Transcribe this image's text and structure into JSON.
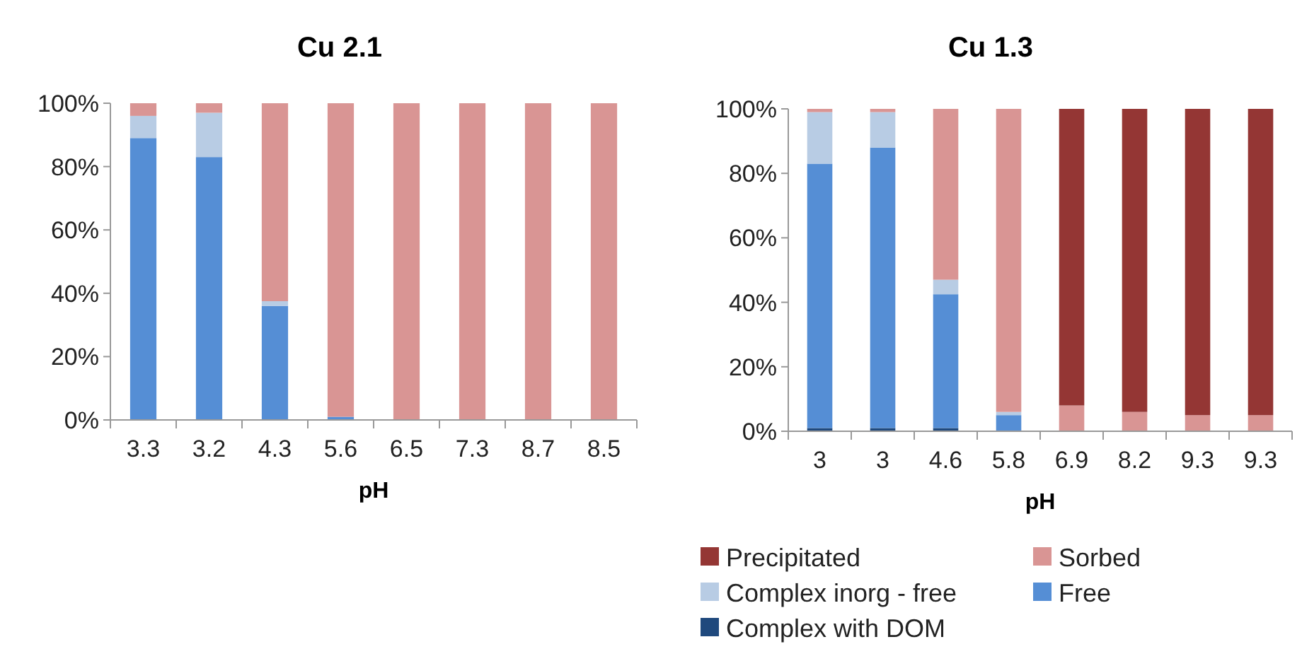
{
  "chart_data": [
    {
      "type": "bar",
      "title": "Cu 2.1",
      "xlabel": "pH",
      "stacked": true,
      "categories": [
        "3.3",
        "3.2",
        "4.3",
        "5.6",
        "6.5",
        "7.3",
        "8.7",
        "8.5"
      ],
      "ylim": [
        0,
        100
      ],
      "yticks": [
        {
          "value": 0,
          "label": "0%"
        },
        {
          "value": 20,
          "label": "20%"
        },
        {
          "value": 40,
          "label": "40%"
        },
        {
          "value": 60,
          "label": "60%"
        },
        {
          "value": 80,
          "label": "80%"
        },
        {
          "value": 100,
          "label": "100%"
        }
      ],
      "series": [
        {
          "color": "#1f497d",
          "values": [
            0,
            0,
            0,
            0,
            0,
            0,
            0,
            0
          ]
        },
        {
          "color": "#558ed5",
          "values": [
            89,
            83,
            36,
            1,
            0,
            0,
            0,
            0
          ]
        },
        {
          "color": "#b8cce4",
          "values": [
            7,
            14,
            1.5,
            0,
            0,
            0,
            0,
            0
          ]
        },
        {
          "color": "#d99594",
          "values": [
            4,
            3,
            62.5,
            99,
            100,
            100,
            100,
            100
          ]
        },
        {
          "color": "#943634",
          "values": [
            0,
            0,
            0,
            0,
            0,
            0,
            0,
            0
          ]
        }
      ]
    },
    {
      "type": "bar",
      "title": "Cu 1.3",
      "xlabel": "pH",
      "stacked": true,
      "legend": "bottom",
      "categories": [
        "3",
        "3",
        "4.6",
        "5.8",
        "6.9",
        "8.2",
        "9.3",
        "9.3"
      ],
      "ylim": [
        0,
        100
      ],
      "yticks": [
        {
          "value": 0,
          "label": "0%"
        },
        {
          "value": 20,
          "label": "20%"
        },
        {
          "value": 40,
          "label": "40%"
        },
        {
          "value": 60,
          "label": "60%"
        },
        {
          "value": 80,
          "label": "80%"
        },
        {
          "value": 100,
          "label": "100%"
        }
      ],
      "series": [
        {
          "name": "Complex with DOM",
          "color": "#1f497d",
          "values": [
            1,
            1,
            1,
            0,
            0,
            0,
            0,
            0
          ]
        },
        {
          "name": "Free",
          "color": "#558ed5",
          "values": [
            82,
            87,
            41.5,
            5,
            0,
            0,
            0,
            0
          ]
        },
        {
          "name": "Complex inorg - free",
          "color": "#b8cce4",
          "values": [
            16,
            11,
            4.5,
            1,
            0,
            0,
            0,
            0
          ]
        },
        {
          "name": "Sorbed",
          "color": "#d99594",
          "values": [
            1,
            1,
            53,
            94,
            8,
            6,
            5,
            5
          ]
        },
        {
          "name": "Precipitated",
          "color": "#943634",
          "values": [
            0,
            0,
            0,
            0,
            92,
            94,
            95,
            95
          ]
        }
      ]
    }
  ]
}
